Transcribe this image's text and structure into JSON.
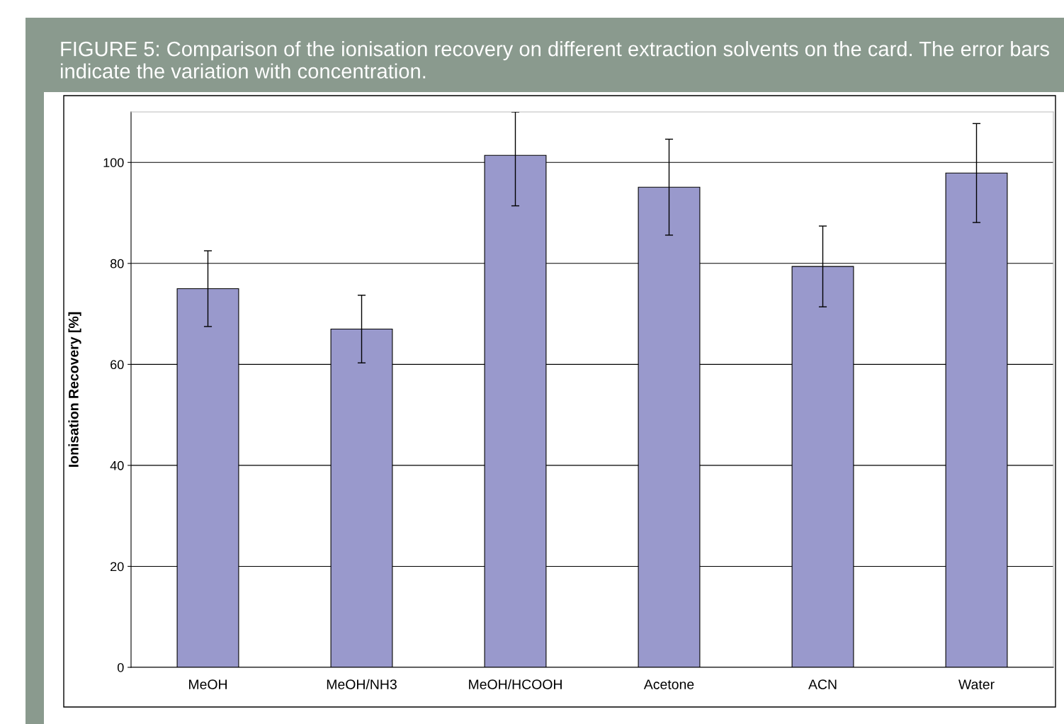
{
  "chart_data": {
    "type": "bar",
    "title": "FIGURE 5: Comparison of the ionisation recovery on different extraction solvents on the card. The error bars indicate the variation with concentration.",
    "ylabel": "Ionisation Recovery [%]",
    "categories": [
      "MeOH",
      "MeOH/NH3",
      "MeOH/HCOOH",
      "Acetone",
      "ACN",
      "Water"
    ],
    "values": [
      75,
      67,
      101.4,
      95.1,
      79.4,
      97.9
    ],
    "errors": [
      7.5,
      6.7,
      [
        91.4,
        110
      ],
      9.5,
      8,
      9.8
    ],
    "color": "#9999cc",
    "ylim": [
      0,
      110
    ],
    "yticks": [
      0,
      20,
      40,
      60,
      80,
      100
    ],
    "grid": "y",
    "legend": false
  }
}
